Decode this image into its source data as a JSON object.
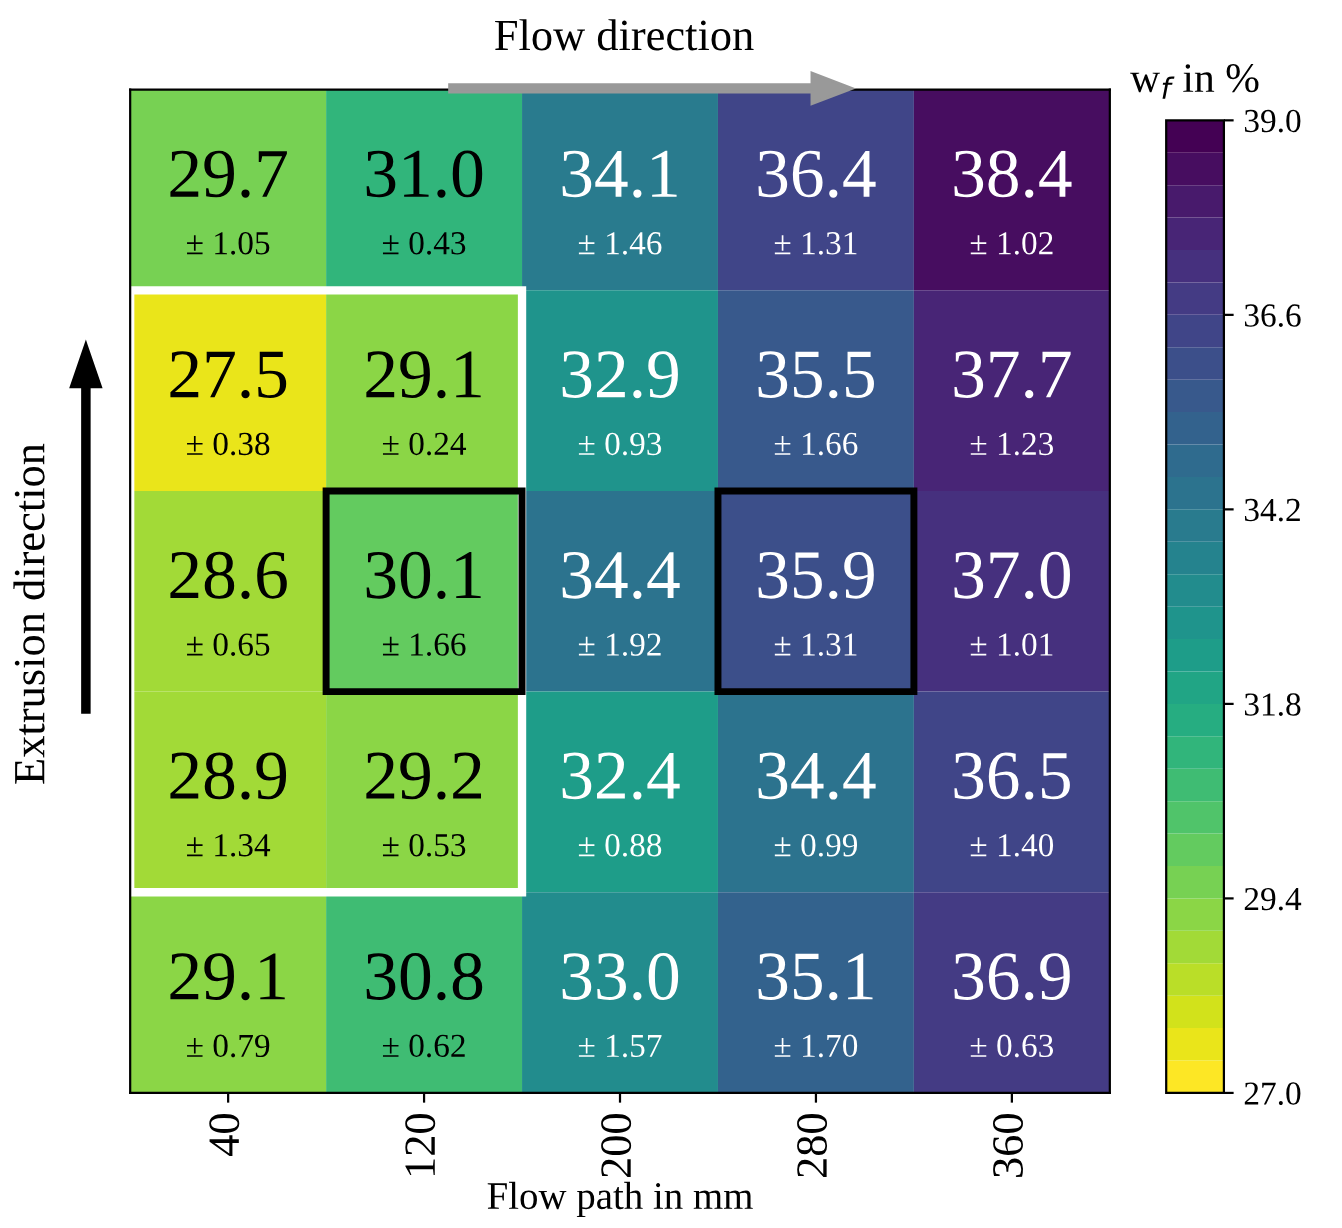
{
  "chart_data": {
    "type": "heatmap",
    "xlabel": "Flow path in mm",
    "clabel": "w$_{f}$ in %",
    "categories": [
      "40",
      "120",
      "200",
      "280",
      "360"
    ],
    "y_categories": [
      null,
      null,
      null,
      null,
      null
    ],
    "cells": [
      [
        29.7,
        31.0,
        34.1,
        36.4,
        38.4
      ],
      [
        27.5,
        29.1,
        32.9,
        35.5,
        37.7
      ],
      [
        28.6,
        30.1,
        34.4,
        35.9,
        37.0
      ],
      [
        28.9,
        29.2,
        32.4,
        34.4,
        36.5
      ],
      [
        29.1,
        30.8,
        33.0,
        35.1,
        36.9
      ]
    ],
    "cell_labels": [
      [
        "29.7\n± 1.05",
        "31.0\n± 0.43",
        "34.1\n± 1.46",
        "36.4\n± 1.31",
        "38.4\n± 1.02"
      ],
      [
        "27.5\n± 0.38",
        "29.1\n± 0.24",
        "32.9\n± 0.93",
        "35.5\n± 1.66",
        "37.7\n± 1.23"
      ],
      [
        "28.6\n± 0.65",
        "30.1\n± 1.66",
        "34.4\n± 1.92",
        "35.9\n± 1.31",
        "37.0\n± 1.01"
      ],
      [
        "28.9\n± 1.34",
        "29.2\n± 0.53",
        "32.4\n± 0.88",
        "34.4\n± 0.99",
        "36.5\n± 1.40"
      ],
      [
        "29.1\n± 0.79",
        "30.8\n± 0.62",
        "33.0\n± 1.57",
        "35.1\n± 1.70",
        "36.9\n± 0.63"
      ]
    ],
    "clim": [
      27.0,
      39.0
    ],
    "cticks": [
      {
        "value": 27.0,
        "label": "27.0"
      },
      {
        "value": 29.4,
        "label": "29.4"
      },
      {
        "value": 31.8,
        "label": "31.8"
      },
      {
        "value": 34.2,
        "label": "34.2"
      },
      {
        "value": 36.6,
        "label": "36.6"
      },
      {
        "value": 39.0,
        "label": "39.0"
      }
    ],
    "annotations": [
      "Flow direction",
      "Extrusion direction"
    ],
    "tick_labels": "x"
  }
}
